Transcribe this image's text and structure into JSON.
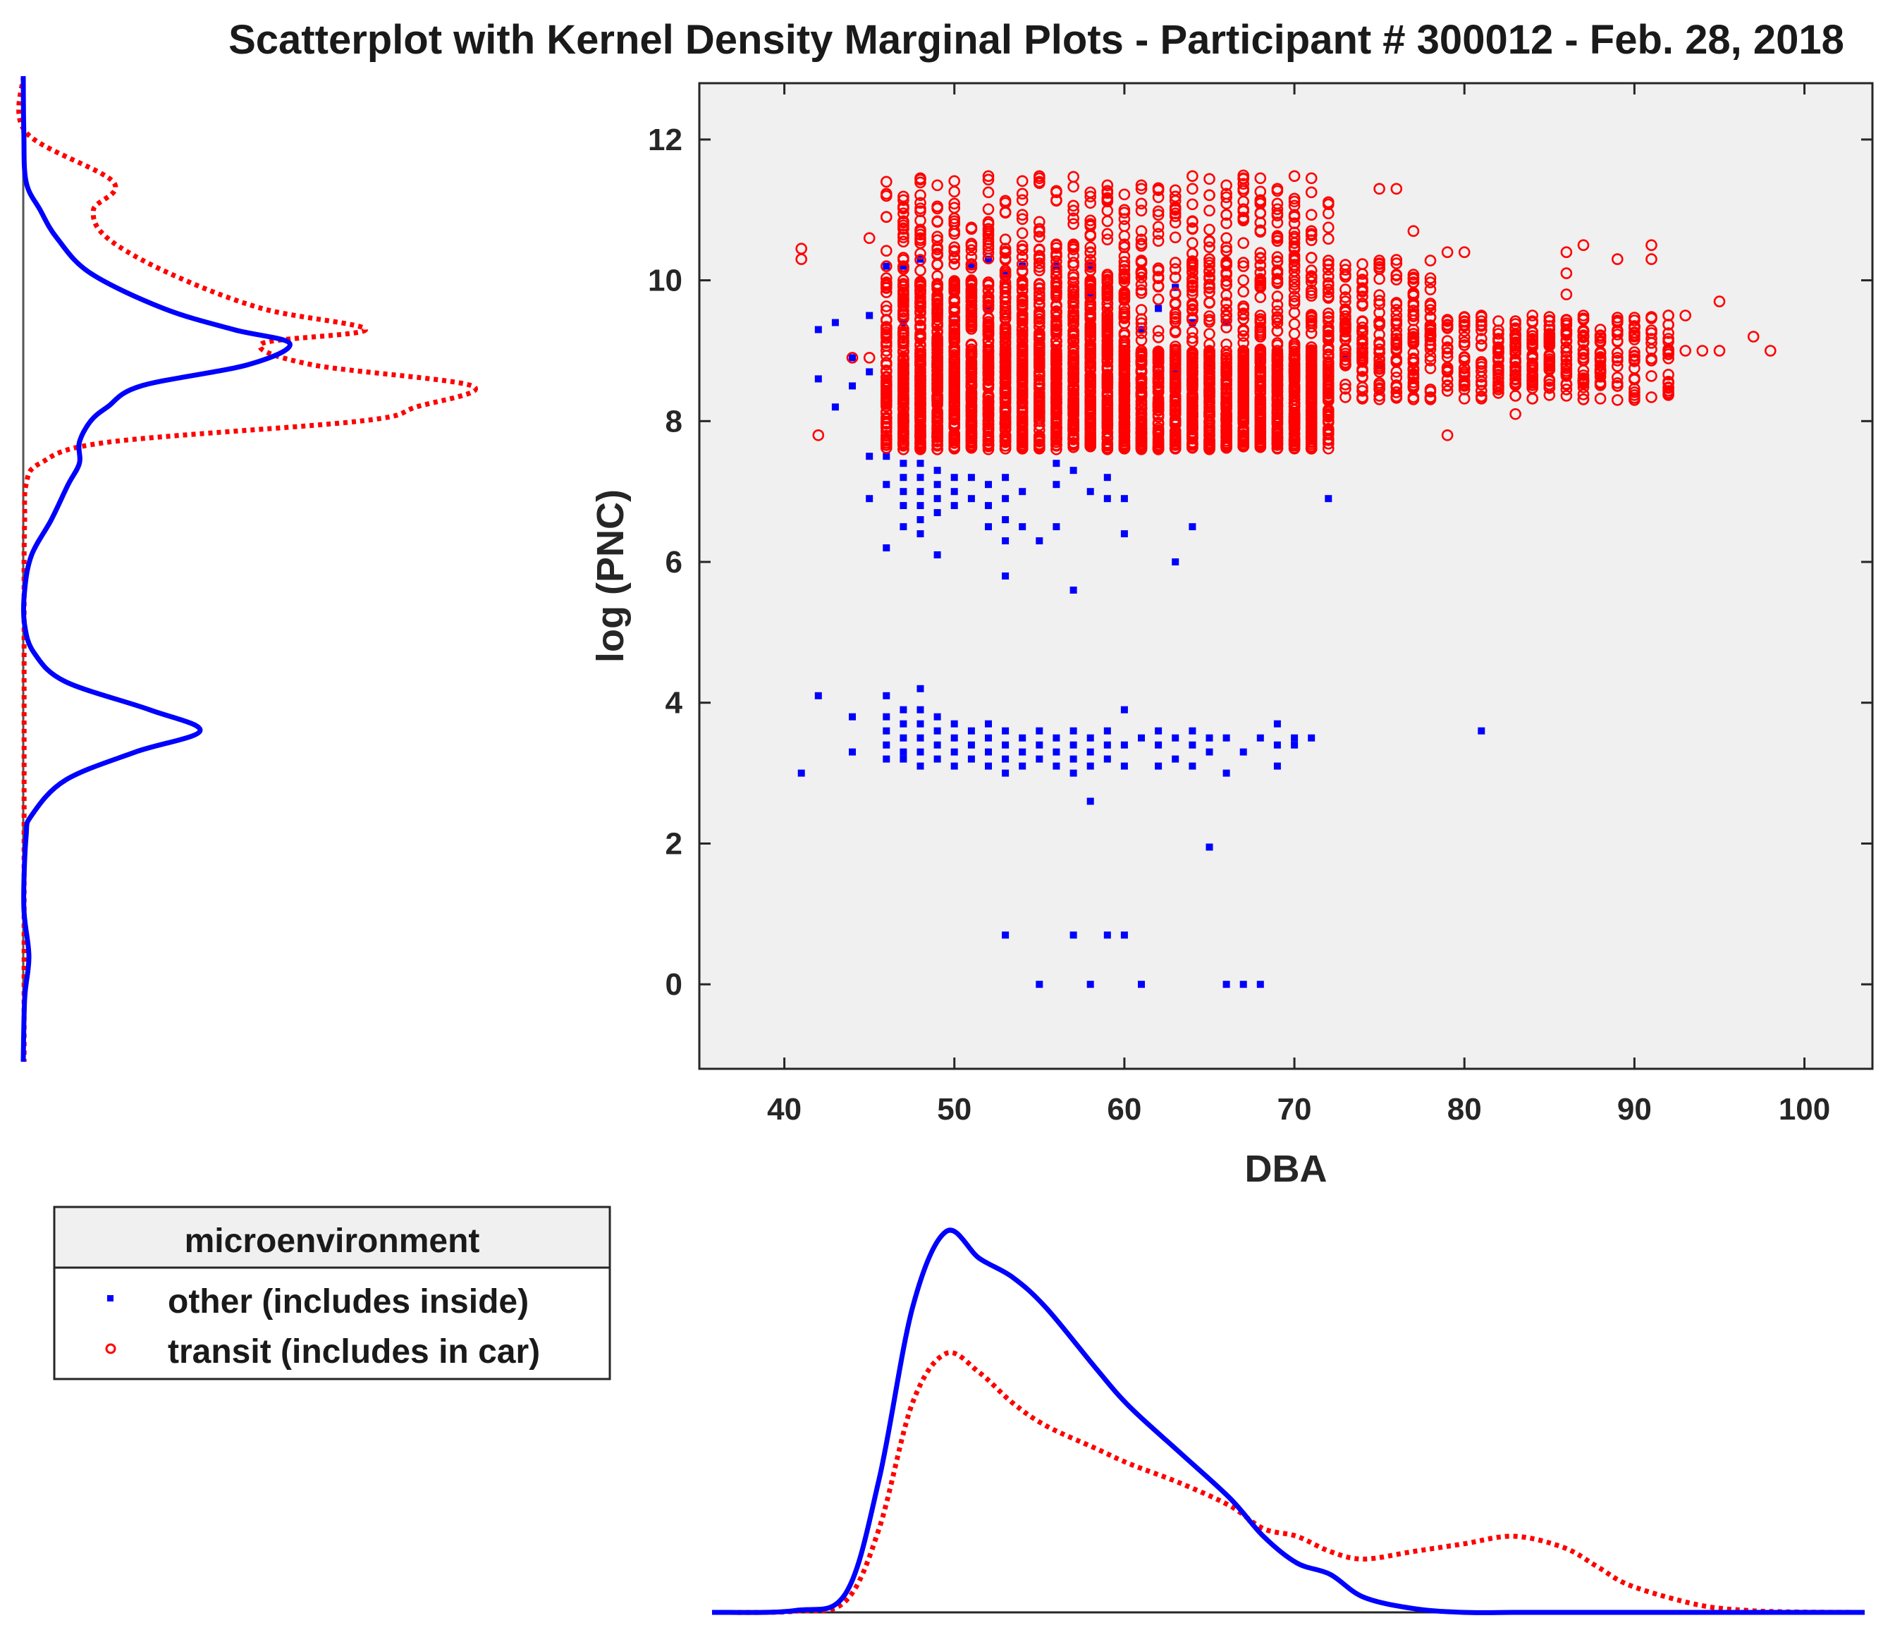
{
  "chart_data": {
    "type": "scatter",
    "title": "Scatterplot with Kernel Density Marginal Plots - Participant # 300012 - Feb. 28, 2018",
    "xlabel": "DBA",
    "ylabel": "log (PNC)",
    "xlim": [
      35,
      104
    ],
    "ylim": [
      -1.2,
      12.8
    ],
    "xticks": [
      40,
      50,
      60,
      70,
      80,
      90,
      100
    ],
    "yticks": [
      0,
      2,
      4,
      6,
      8,
      10,
      12
    ],
    "grid": false,
    "legend": {
      "title": "microenvironment",
      "placement": "bottom-left",
      "entries": [
        "other (includes inside)",
        "transit (includes in car)"
      ]
    },
    "colors": {
      "other": "#0000ff",
      "transit": "#ff0000",
      "axes_bg": "#f0f0f0"
    },
    "series": [
      {
        "name": "other (includes inside)",
        "marker": "square",
        "points": [
          [
            41,
            3.0
          ],
          [
            42,
            4.1
          ],
          [
            42,
            9.3
          ],
          [
            42,
            8.6
          ],
          [
            43,
            8.2
          ],
          [
            43,
            9.4
          ],
          [
            44,
            3.3
          ],
          [
            44,
            3.8
          ],
          [
            44,
            8.9
          ],
          [
            44,
            8.5
          ],
          [
            45,
            9.5
          ],
          [
            45,
            6.9
          ],
          [
            45,
            7.5
          ],
          [
            45,
            8.7
          ],
          [
            46,
            3.2
          ],
          [
            46,
            3.4
          ],
          [
            46,
            3.6
          ],
          [
            46,
            3.8
          ],
          [
            46,
            4.1
          ],
          [
            46,
            6.2
          ],
          [
            46,
            7.1
          ],
          [
            46,
            7.5
          ],
          [
            46,
            10.2
          ],
          [
            47,
            3.2
          ],
          [
            47,
            3.3
          ],
          [
            47,
            3.5
          ],
          [
            47,
            3.7
          ],
          [
            47,
            3.9
          ],
          [
            47,
            6.5
          ],
          [
            47,
            6.8
          ],
          [
            47,
            7.0
          ],
          [
            47,
            7.2
          ],
          [
            47,
            7.4
          ],
          [
            47,
            10.2
          ],
          [
            47,
            9.4
          ],
          [
            48,
            3.1
          ],
          [
            48,
            3.3
          ],
          [
            48,
            3.5
          ],
          [
            48,
            3.7
          ],
          [
            48,
            3.9
          ],
          [
            48,
            4.2
          ],
          [
            48,
            6.4
          ],
          [
            48,
            6.6
          ],
          [
            48,
            6.8
          ],
          [
            48,
            7.0
          ],
          [
            48,
            7.2
          ],
          [
            48,
            7.4
          ],
          [
            48,
            10.3
          ],
          [
            49,
            3.2
          ],
          [
            49,
            3.4
          ],
          [
            49,
            3.6
          ],
          [
            49,
            3.8
          ],
          [
            49,
            6.7
          ],
          [
            49,
            6.9
          ],
          [
            49,
            7.1
          ],
          [
            49,
            7.3
          ],
          [
            49,
            6.1
          ],
          [
            50,
            3.1
          ],
          [
            50,
            3.3
          ],
          [
            50,
            3.5
          ],
          [
            50,
            3.7
          ],
          [
            50,
            7.0
          ],
          [
            50,
            6.8
          ],
          [
            50,
            7.2
          ],
          [
            50,
            9.4
          ],
          [
            51,
            3.2
          ],
          [
            51,
            3.4
          ],
          [
            51,
            3.6
          ],
          [
            51,
            6.9
          ],
          [
            51,
            7.2
          ],
          [
            51,
            10.2
          ],
          [
            51,
            9.9
          ],
          [
            52,
            3.1
          ],
          [
            52,
            3.3
          ],
          [
            52,
            3.5
          ],
          [
            52,
            3.7
          ],
          [
            52,
            6.5
          ],
          [
            52,
            6.8
          ],
          [
            52,
            7.1
          ],
          [
            52,
            10.3
          ],
          [
            52,
            9.6
          ],
          [
            53,
            3.0
          ],
          [
            53,
            3.2
          ],
          [
            53,
            3.4
          ],
          [
            53,
            3.6
          ],
          [
            53,
            6.3
          ],
          [
            53,
            6.6
          ],
          [
            53,
            6.9
          ],
          [
            53,
            7.2
          ],
          [
            53,
            5.8
          ],
          [
            53,
            0.7
          ],
          [
            53,
            10.1
          ],
          [
            54,
            3.1
          ],
          [
            54,
            3.3
          ],
          [
            54,
            3.5
          ],
          [
            54,
            6.5
          ],
          [
            54,
            7.0
          ],
          [
            54,
            10.2
          ],
          [
            55,
            3.2
          ],
          [
            55,
            3.4
          ],
          [
            55,
            3.6
          ],
          [
            55,
            6.3
          ],
          [
            55,
            0.0
          ],
          [
            56,
            3.1
          ],
          [
            56,
            3.3
          ],
          [
            56,
            3.5
          ],
          [
            56,
            6.5
          ],
          [
            56,
            7.1
          ],
          [
            56,
            7.4
          ],
          [
            56,
            10.2
          ],
          [
            57,
            3.0
          ],
          [
            57,
            3.2
          ],
          [
            57,
            3.4
          ],
          [
            57,
            3.6
          ],
          [
            57,
            5.6
          ],
          [
            57,
            7.3
          ],
          [
            57,
            0.7
          ],
          [
            58,
            2.6
          ],
          [
            58,
            3.1
          ],
          [
            58,
            3.3
          ],
          [
            58,
            3.5
          ],
          [
            58,
            7.0
          ],
          [
            58,
            10.2
          ],
          [
            58,
            0.0
          ],
          [
            58,
            9.8
          ],
          [
            59,
            3.2
          ],
          [
            59,
            3.4
          ],
          [
            59,
            3.6
          ],
          [
            59,
            6.9
          ],
          [
            59,
            7.2
          ],
          [
            59,
            0.7
          ],
          [
            60,
            3.1
          ],
          [
            60,
            3.4
          ],
          [
            60,
            3.9
          ],
          [
            60,
            6.4
          ],
          [
            60,
            6.9
          ],
          [
            60,
            0.7
          ],
          [
            61,
            3.5
          ],
          [
            61,
            0.0
          ],
          [
            61,
            9.3
          ],
          [
            62,
            3.1
          ],
          [
            62,
            3.4
          ],
          [
            62,
            3.6
          ],
          [
            62,
            9.6
          ],
          [
            63,
            3.2
          ],
          [
            63,
            3.5
          ],
          [
            63,
            6.0
          ],
          [
            63,
            9.9
          ],
          [
            64,
            3.1
          ],
          [
            64,
            3.4
          ],
          [
            64,
            3.6
          ],
          [
            64,
            6.5
          ],
          [
            64,
            9.4
          ],
          [
            65,
            3.3
          ],
          [
            65,
            3.5
          ],
          [
            65,
            1.95
          ],
          [
            65,
            8.8
          ],
          [
            66,
            3.0
          ],
          [
            66,
            3.5
          ],
          [
            66,
            0.0
          ],
          [
            66,
            9.4
          ],
          [
            67,
            3.3
          ],
          [
            67,
            0.0
          ],
          [
            67,
            8.9
          ],
          [
            68,
            3.5
          ],
          [
            68,
            0.0
          ],
          [
            68,
            8.8
          ],
          [
            69,
            3.1
          ],
          [
            69,
            3.4
          ],
          [
            69,
            3.7
          ],
          [
            69,
            9.0
          ],
          [
            70,
            3.5
          ],
          [
            70,
            3.4
          ],
          [
            70,
            8.7
          ],
          [
            71,
            3.5
          ],
          [
            72,
            6.9
          ],
          [
            72,
            8.6
          ],
          [
            73,
            8.9
          ],
          [
            75,
            8.8
          ],
          [
            81,
            3.6
          ],
          [
            63,
            8.7
          ],
          [
            56,
            8.7
          ],
          [
            50,
            8.8
          ]
        ]
      },
      {
        "name": "transit (includes in car)",
        "marker": "circle",
        "points": [
          [
            41,
            10.3
          ],
          [
            41,
            10.45
          ],
          [
            42,
            7.8
          ],
          [
            44,
            8.9
          ],
          [
            45,
            10.6
          ],
          [
            45,
            8.9
          ],
          [
            46,
            8.3
          ],
          [
            46,
            8.8
          ],
          [
            46,
            10.9
          ],
          [
            46,
            11.4
          ],
          [
            46,
            11.2
          ],
          [
            46,
            10.2
          ],
          [
            46,
            9.0
          ],
          [
            75,
            11.3
          ],
          [
            76,
            11.3
          ],
          [
            77,
            10.7
          ],
          [
            78,
            9.2
          ],
          [
            79,
            7.8
          ],
          [
            79,
            10.4
          ],
          [
            80,
            10.4
          ],
          [
            80,
            8.5
          ],
          [
            81,
            9.5
          ],
          [
            83,
            8.1
          ],
          [
            84,
            9.4
          ],
          [
            86,
            9.8
          ],
          [
            86,
            10.1
          ],
          [
            86,
            10.4
          ],
          [
            87,
            10.5
          ],
          [
            87,
            9.5
          ],
          [
            89,
            9.4
          ],
          [
            89,
            8.5
          ],
          [
            89,
            10.3
          ],
          [
            90,
            8.3
          ],
          [
            90,
            9.2
          ],
          [
            91,
            10.3
          ],
          [
            91,
            10.5
          ],
          [
            92,
            9.5
          ],
          [
            92,
            8.4
          ],
          [
            93,
            9.0
          ],
          [
            93,
            9.5
          ],
          [
            94,
            9.0
          ],
          [
            95,
            9.0
          ],
          [
            95,
            9.7
          ],
          [
            97,
            9.2
          ],
          [
            98,
            9.0
          ]
        ]
      }
    ],
    "marginals": {
      "x_density": {
        "grid": [
          35,
          40,
          43,
          45,
          47,
          49,
          51,
          53,
          55,
          58,
          60,
          63,
          66,
          68,
          70,
          72,
          74,
          77,
          80,
          83,
          86,
          88,
          90,
          94,
          97,
          100,
          104
        ],
        "other": [
          0,
          0.005,
          0.05,
          0.35,
          0.8,
          1.0,
          0.93,
          0.88,
          0.8,
          0.64,
          0.54,
          0.42,
          0.3,
          0.2,
          0.13,
          0.1,
          0.04,
          0.01,
          0,
          0,
          0,
          0,
          0,
          0,
          0,
          0,
          0
        ],
        "transit": [
          0,
          0.003,
          0.03,
          0.22,
          0.55,
          0.68,
          0.63,
          0.55,
          0.49,
          0.43,
          0.39,
          0.34,
          0.28,
          0.22,
          0.2,
          0.16,
          0.14,
          0.16,
          0.18,
          0.2,
          0.17,
          0.12,
          0.07,
          0.02,
          0.005,
          0.001,
          0
        ]
      },
      "y_density": {
        "grid": [
          12.8,
          12.0,
          11.3,
          10.9,
          10.5,
          10.0,
          9.5,
          9.2,
          9.0,
          8.7,
          8.4,
          8.1,
          7.9,
          7.6,
          7.3,
          7.0,
          6.5,
          6.0,
          5.5,
          5.0,
          4.6,
          4.2,
          3.8,
          3.5,
          3.2,
          2.8,
          2.3,
          2.0,
          1.0,
          0.3,
          -0.3,
          -1.2
        ],
        "other": [
          0.0,
          0.002,
          0.01,
          0.06,
          0.12,
          0.24,
          0.5,
          0.75,
          0.95,
          0.8,
          0.42,
          0.3,
          0.24,
          0.2,
          0.2,
          0.16,
          0.1,
          0.03,
          0.005,
          0.005,
          0.04,
          0.15,
          0.45,
          0.63,
          0.4,
          0.15,
          0.03,
          0.01,
          0.002,
          0.02,
          0.005,
          0.0
        ],
        "transit": [
          0.0,
          0.01,
          0.32,
          0.25,
          0.3,
          0.52,
          0.85,
          1.22,
          0.85,
          1.03,
          1.6,
          1.4,
          1.2,
          0.3,
          0.06,
          0.01,
          0.005,
          0.003,
          0.003,
          0.003,
          0.003,
          0.003,
          0.003,
          0.003,
          0.003,
          0.003,
          0.003,
          0.003,
          0.003,
          0.003,
          0.003,
          0.003
        ]
      }
    }
  }
}
